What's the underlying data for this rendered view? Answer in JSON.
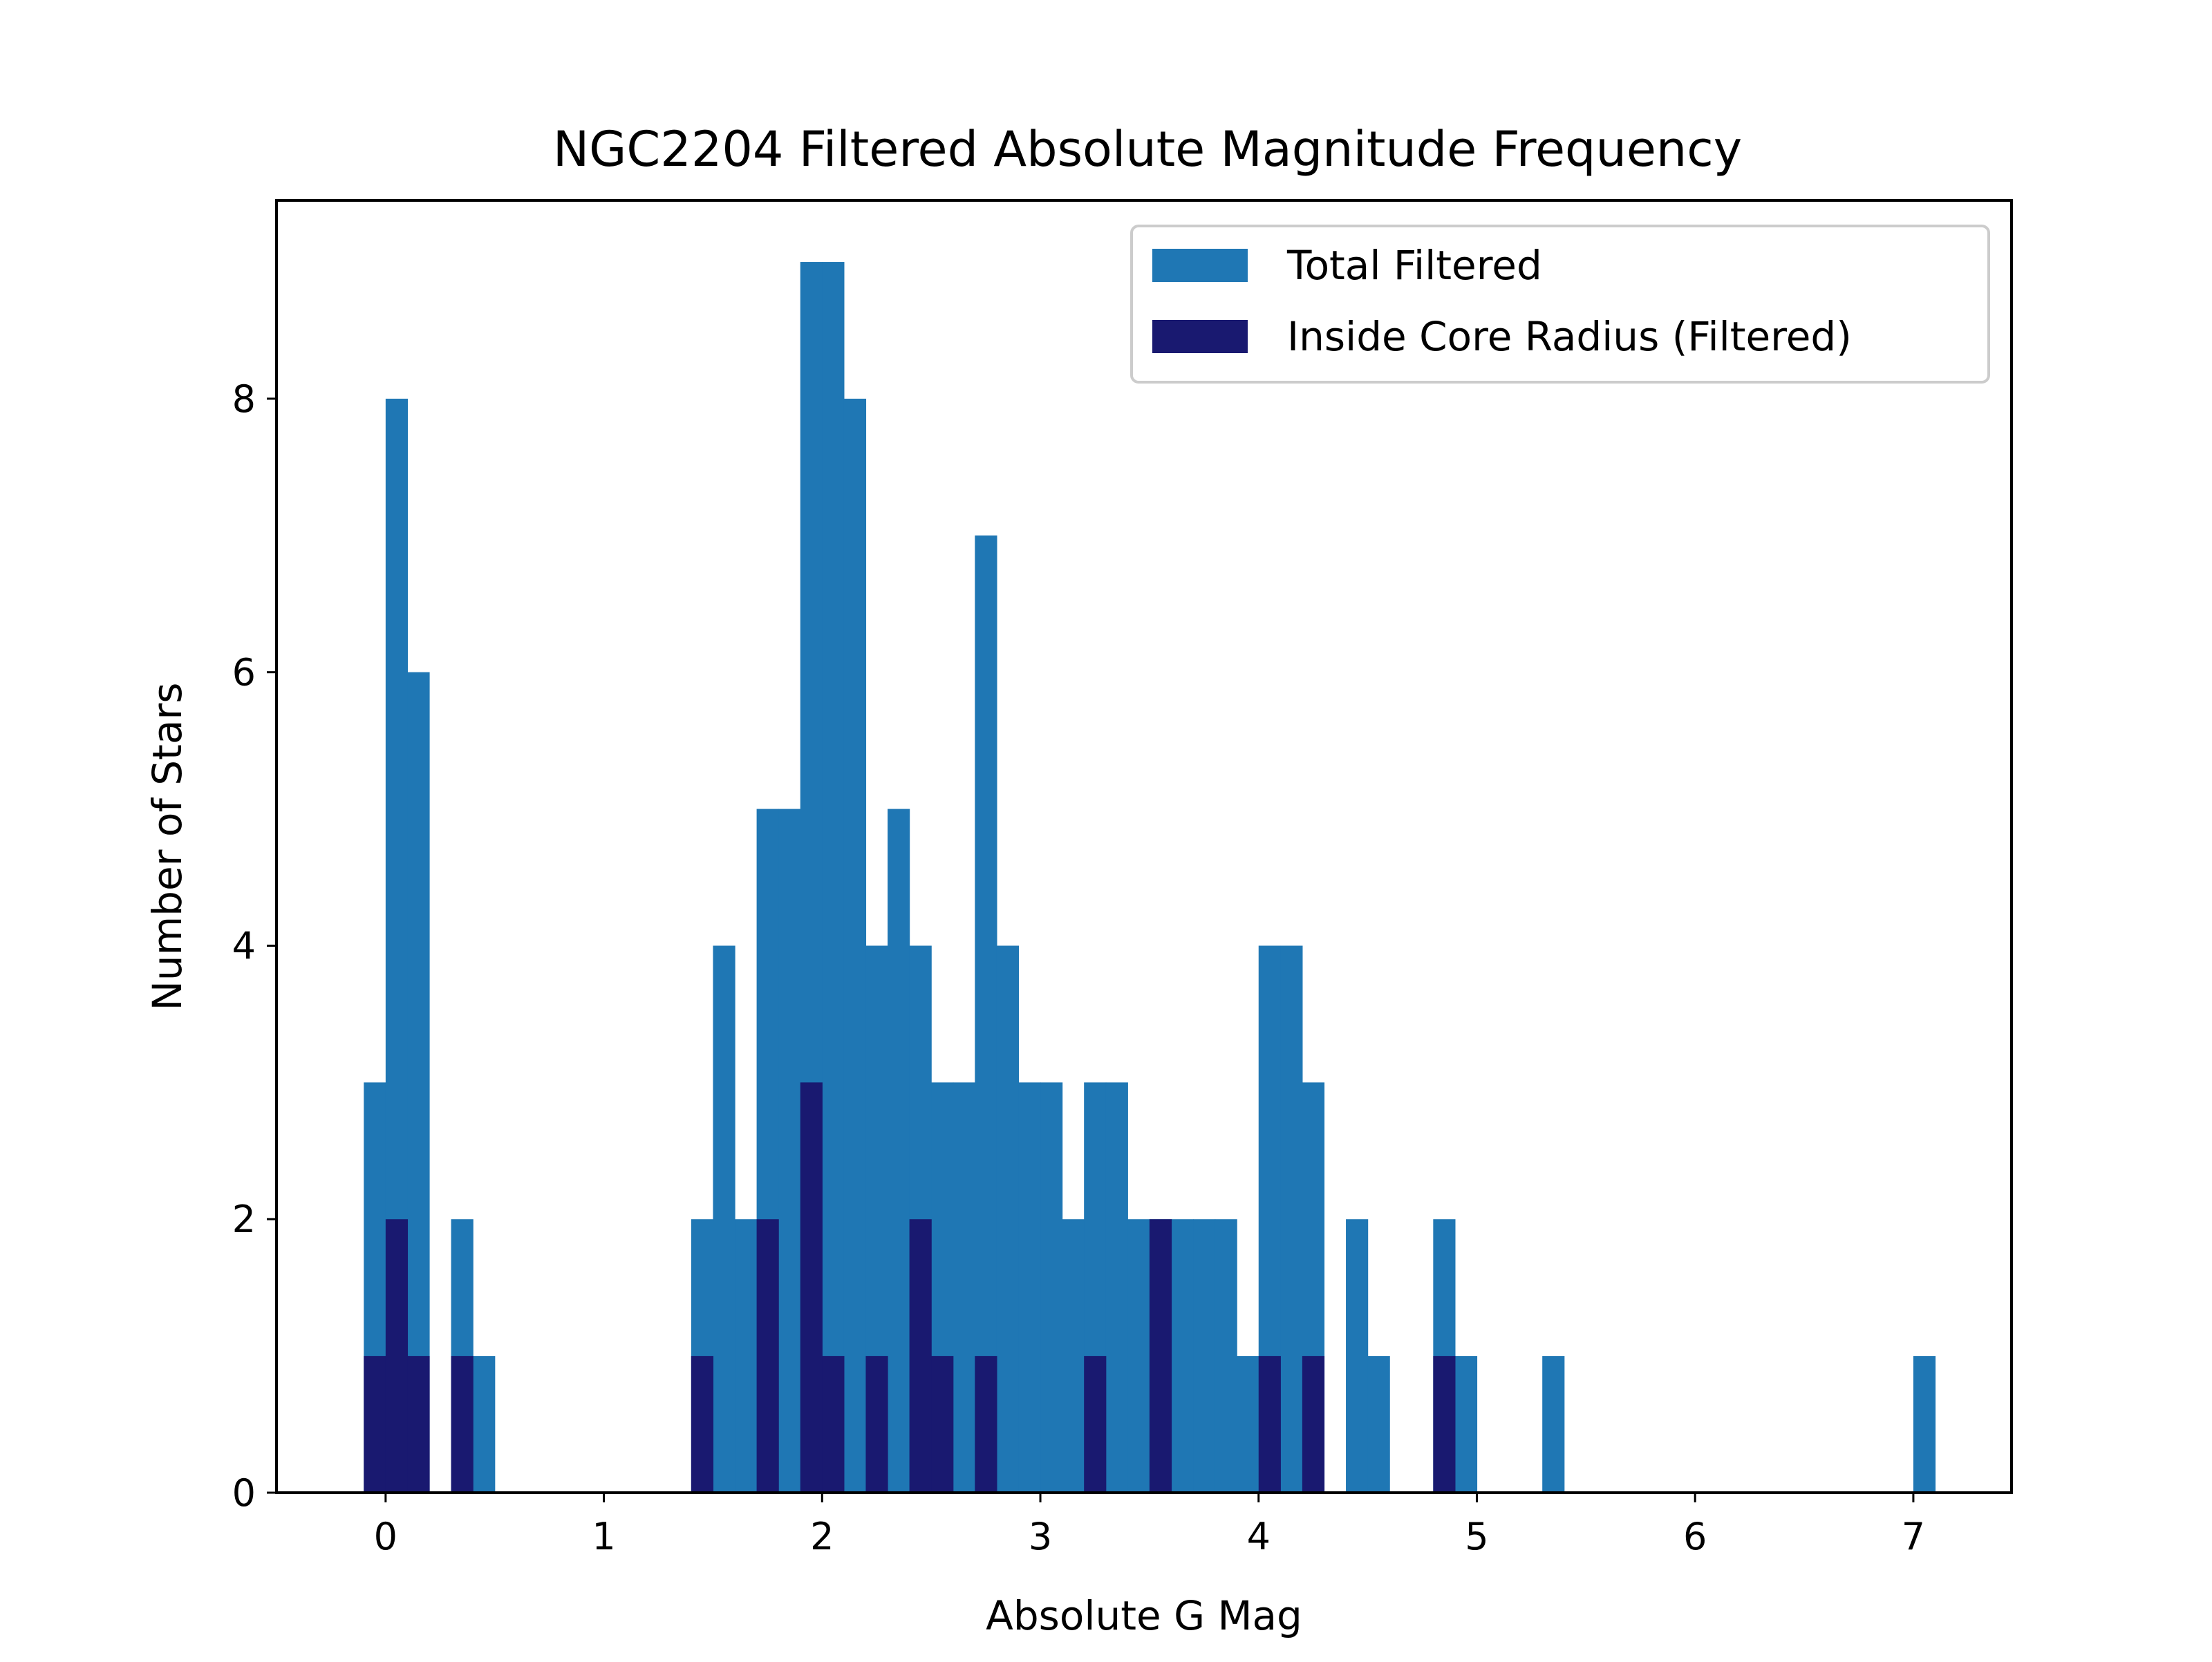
{
  "chart_data": {
    "type": "bar",
    "title": "NGC2204 Filtered Absolute Magnitude Frequency",
    "xlabel": "Absolute G Mag",
    "ylabel": "Number of Stars",
    "xlim": [
      -0.5,
      7.45
    ],
    "ylim": [
      0,
      9.45
    ],
    "bin_width": 0.1,
    "x_ticks": [
      0,
      1,
      2,
      3,
      4,
      5,
      6,
      7
    ],
    "y_ticks": [
      0,
      2,
      4,
      6,
      8
    ],
    "grid": false,
    "legend_position": "top-right",
    "series": [
      {
        "name": "Total Filtered",
        "color": "#1f77b4",
        "bins": [
          {
            "x": -0.1,
            "y": 3
          },
          {
            "x": 0.0,
            "y": 8
          },
          {
            "x": 0.1,
            "y": 6
          },
          {
            "x": 0.3,
            "y": 2
          },
          {
            "x": 0.4,
            "y": 1
          },
          {
            "x": 1.4,
            "y": 2
          },
          {
            "x": 1.5,
            "y": 4
          },
          {
            "x": 1.6,
            "y": 2
          },
          {
            "x": 1.7,
            "y": 5
          },
          {
            "x": 1.8,
            "y": 5
          },
          {
            "x": 1.9,
            "y": 9
          },
          {
            "x": 2.0,
            "y": 9
          },
          {
            "x": 2.1,
            "y": 8
          },
          {
            "x": 2.2,
            "y": 4
          },
          {
            "x": 2.3,
            "y": 5
          },
          {
            "x": 2.4,
            "y": 4
          },
          {
            "x": 2.5,
            "y": 3
          },
          {
            "x": 2.6,
            "y": 3
          },
          {
            "x": 2.7,
            "y": 7
          },
          {
            "x": 2.8,
            "y": 4
          },
          {
            "x": 2.9,
            "y": 3
          },
          {
            "x": 3.0,
            "y": 3
          },
          {
            "x": 3.1,
            "y": 2
          },
          {
            "x": 3.2,
            "y": 3
          },
          {
            "x": 3.3,
            "y": 3
          },
          {
            "x": 3.4,
            "y": 2
          },
          {
            "x": 3.5,
            "y": 2
          },
          {
            "x": 3.6,
            "y": 2
          },
          {
            "x": 3.7,
            "y": 2
          },
          {
            "x": 3.8,
            "y": 2
          },
          {
            "x": 3.9,
            "y": 1
          },
          {
            "x": 4.0,
            "y": 4
          },
          {
            "x": 4.1,
            "y": 4
          },
          {
            "x": 4.2,
            "y": 3
          },
          {
            "x": 4.4,
            "y": 2
          },
          {
            "x": 4.5,
            "y": 1
          },
          {
            "x": 4.8,
            "y": 2
          },
          {
            "x": 4.9,
            "y": 1
          },
          {
            "x": 5.3,
            "y": 1
          },
          {
            "x": 7.0,
            "y": 1
          }
        ]
      },
      {
        "name": "Inside Core Radius (Filtered)",
        "color": "#191970",
        "bins": [
          {
            "x": -0.1,
            "y": 1
          },
          {
            "x": 0.0,
            "y": 2
          },
          {
            "x": 0.1,
            "y": 1
          },
          {
            "x": 0.3,
            "y": 1
          },
          {
            "x": 1.4,
            "y": 1
          },
          {
            "x": 1.7,
            "y": 2
          },
          {
            "x": 1.9,
            "y": 3
          },
          {
            "x": 2.0,
            "y": 1
          },
          {
            "x": 2.2,
            "y": 1
          },
          {
            "x": 2.4,
            "y": 2
          },
          {
            "x": 2.5,
            "y": 1
          },
          {
            "x": 2.7,
            "y": 1
          },
          {
            "x": 3.2,
            "y": 1
          },
          {
            "x": 3.5,
            "y": 2
          },
          {
            "x": 4.0,
            "y": 1
          },
          {
            "x": 4.2,
            "y": 1
          },
          {
            "x": 4.8,
            "y": 1
          }
        ]
      }
    ]
  }
}
